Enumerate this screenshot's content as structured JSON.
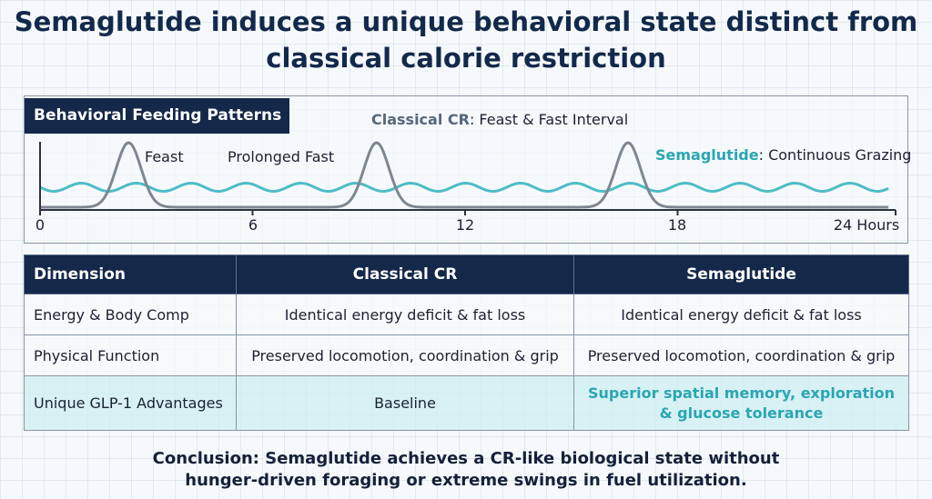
{
  "title": "Semaglutide induces a unique behavioral state distinct from classical calorie restriction",
  "chart": {
    "panel_title": "Behavioral Feeding Patterns",
    "cr_label_strong": "Classical CR",
    "cr_label_rest": ": Feast & Fast Interval",
    "sema_label_strong": "Semaglutide",
    "sema_label_rest": ": Continuous Grazing",
    "annotation_feast": "Feast",
    "annotation_fast": "Prolonged Fast",
    "colors": {
      "cr": "#7d8791",
      "semaglutide": "#4dbdc6",
      "axis": "#2b3240"
    }
  },
  "chart_data": {
    "type": "line",
    "x_axis": {
      "ticks": [
        "0",
        "6",
        "12",
        "18",
        "24 Hours"
      ],
      "range": [
        0,
        24
      ]
    },
    "series": [
      {
        "name": "Classical CR",
        "pattern": "feast_peaks",
        "peak_hours": [
          2.5,
          9.5,
          16.6
        ]
      },
      {
        "name": "Semaglutide",
        "pattern": "continuous_oscillation"
      }
    ],
    "annotations": [
      "Feast",
      "Prolonged Fast"
    ]
  },
  "table": {
    "headers": [
      "Dimension",
      "Classical CR",
      "Semaglutide"
    ],
    "rows": [
      [
        "Energy & Body Comp",
        "Identical energy deficit & fat loss",
        "Identical energy deficit & fat loss"
      ],
      [
        "Physical Function",
        "Preserved locomotion, coordination & grip",
        "Preserved locomotion, coordination & grip"
      ],
      [
        "Unique GLP-1 Advantages",
        "Baseline",
        "Superior spatial memory, exploration & glucose tolerance"
      ]
    ],
    "highlight_lines": [
      "Superior spatial memory, exploration",
      "& glucose tolerance"
    ]
  },
  "conclusion": {
    "line1": "Conclusion: Semaglutide achieves a CR-like biological state without",
    "line2": "hunger-driven foraging or extreme swings in fuel utilization."
  }
}
